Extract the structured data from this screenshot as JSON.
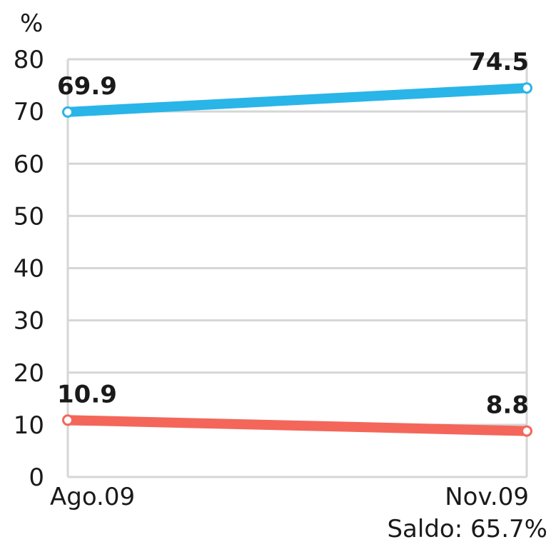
{
  "chart_data": {
    "type": "line",
    "ylabel": "%",
    "ylim": [
      0,
      80
    ],
    "yticks": [
      "0",
      "10",
      "20",
      "30",
      "40",
      "50",
      "60",
      "70",
      "80"
    ],
    "categories": [
      "Ago.09",
      "Nov.09"
    ],
    "series": [
      {
        "color": "#29b5e8",
        "values": [
          69.9,
          74.5
        ],
        "labels": [
          "69.9",
          "74.5"
        ]
      },
      {
        "color": "#f4665a",
        "values": [
          10.9,
          8.8
        ],
        "labels": [
          "10.9",
          "8.8"
        ]
      }
    ],
    "grid": true,
    "note": "Saldo: 65.7%"
  }
}
